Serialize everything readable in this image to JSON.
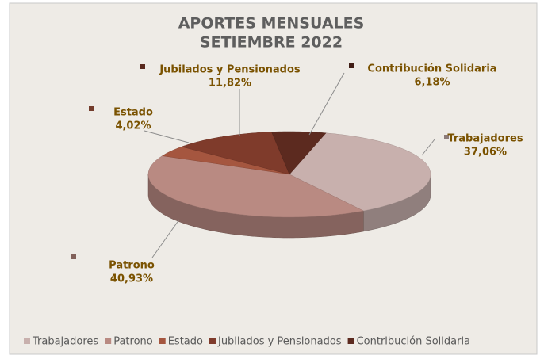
{
  "chart_data": {
    "type": "pie",
    "title": "APORTES MENSUALES",
    "subtitle": "SETIEMBRE 2022",
    "categories": [
      "Trabajadores",
      "Patrono",
      "Estado",
      "Jubilados y Pensionados",
      "Contribución Solidaria"
    ],
    "values": [
      37.06,
      40.93,
      4.02,
      11.82,
      6.18
    ],
    "value_labels": [
      "37,06%",
      "40,93%",
      "4,02%",
      "11,82%",
      "6,18%"
    ],
    "colors": [
      "#c8b0ad",
      "#b98a82",
      "#a5563f",
      "#7f3b2b",
      "#5c2a1f"
    ],
    "legend": "bottom"
  }
}
